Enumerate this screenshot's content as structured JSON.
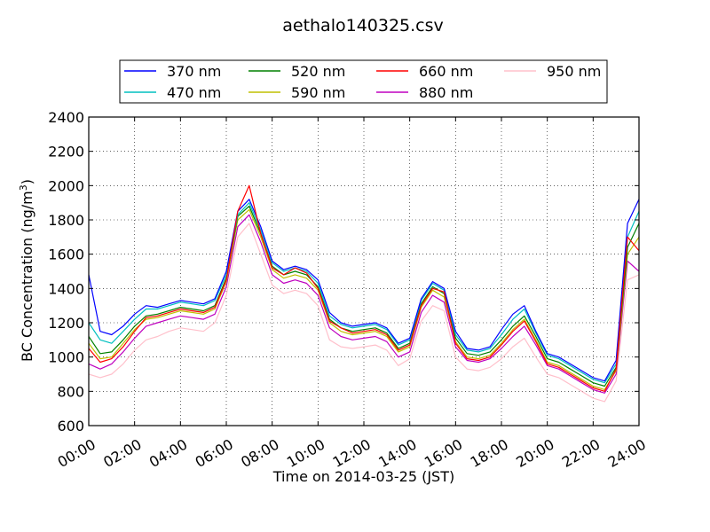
{
  "chart_data": {
    "type": "line",
    "title": "aethalo140325.csv",
    "xlabel": "Time on 2014-03-25 (JST)",
    "ylabel": "BC Concentration (ng/m",
    "ylabel_sup": "3",
    "ylabel_end": ")",
    "xlim_hours": [
      0,
      24
    ],
    "ylim": [
      600,
      2400
    ],
    "x_ticks": [
      "00:00",
      "02:00",
      "04:00",
      "06:00",
      "08:00",
      "10:00",
      "12:00",
      "14:00",
      "16:00",
      "18:00",
      "20:00",
      "22:00",
      "24:00"
    ],
    "y_ticks": [
      600,
      800,
      1000,
      1200,
      1400,
      1600,
      1800,
      2000,
      2200,
      2400
    ],
    "grid": true,
    "legend_placement": "top",
    "series": [
      {
        "name": "370 nm",
        "color": "#0000ff",
        "x_hours": [
          0,
          0.5,
          1,
          1.5,
          2,
          2.5,
          3,
          3.5,
          4,
          4.5,
          5,
          5.5,
          6,
          6.5,
          7,
          7.5,
          8,
          8.5,
          9,
          9.5,
          10,
          10.5,
          11,
          11.5,
          12,
          12.5,
          13,
          13.5,
          14,
          14.5,
          15,
          15.5,
          16,
          16.5,
          17,
          17.5,
          18,
          18.5,
          19,
          19.5,
          20,
          20.5,
          21,
          21.5,
          22,
          22.5,
          23,
          23.5,
          24
        ],
        "values": [
          1480,
          1150,
          1130,
          1180,
          1250,
          1300,
          1290,
          1310,
          1330,
          1320,
          1310,
          1340,
          1500,
          1850,
          1920,
          1760,
          1560,
          1510,
          1530,
          1510,
          1450,
          1260,
          1200,
          1180,
          1190,
          1200,
          1170,
          1080,
          1110,
          1340,
          1440,
          1400,
          1150,
          1050,
          1040,
          1060,
          1160,
          1250,
          1300,
          1150,
          1020,
          1000,
          960,
          920,
          880,
          860,
          980,
          1780,
          1920
        ]
      },
      {
        "name": "470 nm",
        "color": "#00bfbf",
        "x_hours": [
          0,
          0.5,
          1,
          1.5,
          2,
          2.5,
          3,
          3.5,
          4,
          4.5,
          5,
          5.5,
          6,
          6.5,
          7,
          7.5,
          8,
          8.5,
          9,
          9.5,
          10,
          10.5,
          11,
          11.5,
          12,
          12.5,
          13,
          13.5,
          14,
          14.5,
          15,
          15.5,
          16,
          16.5,
          17,
          17.5,
          18,
          18.5,
          19,
          19.5,
          20,
          20.5,
          21,
          21.5,
          22,
          22.5,
          23,
          23.5,
          24
        ],
        "values": [
          1200,
          1100,
          1080,
          1150,
          1220,
          1280,
          1280,
          1300,
          1320,
          1310,
          1300,
          1330,
          1480,
          1830,
          1900,
          1740,
          1550,
          1500,
          1520,
          1500,
          1430,
          1240,
          1190,
          1170,
          1180,
          1190,
          1160,
          1070,
          1100,
          1330,
          1430,
          1390,
          1130,
          1040,
          1030,
          1050,
          1130,
          1220,
          1280,
          1140,
          1010,
          990,
          950,
          910,
          870,
          850,
          960,
          1700,
          1850
        ]
      },
      {
        "name": "520 nm",
        "color": "#008000",
        "x_hours": [
          0,
          0.5,
          1,
          1.5,
          2,
          2.5,
          3,
          3.5,
          4,
          4.5,
          5,
          5.5,
          6,
          6.5,
          7,
          7.5,
          8,
          8.5,
          9,
          9.5,
          10,
          10.5,
          11,
          11.5,
          12,
          12.5,
          13,
          13.5,
          14,
          14.5,
          15,
          15.5,
          16,
          16.5,
          17,
          17.5,
          18,
          18.5,
          19,
          19.5,
          20,
          20.5,
          21,
          21.5,
          22,
          22.5,
          23,
          23.5,
          24
        ],
        "values": [
          1120,
          1020,
          1030,
          1100,
          1180,
          1240,
          1250,
          1270,
          1290,
          1280,
          1270,
          1300,
          1460,
          1820,
          1880,
          1720,
          1530,
          1480,
          1500,
          1480,
          1410,
          1220,
          1170,
          1150,
          1160,
          1170,
          1140,
          1050,
          1080,
          1310,
          1410,
          1370,
          1110,
          1020,
          1010,
          1030,
          1100,
          1180,
          1240,
          1120,
          990,
          970,
          930,
          890,
          850,
          830,
          940,
          1640,
          1780
        ]
      },
      {
        "name": "590 nm",
        "color": "#bfbf00",
        "x_hours": [
          0,
          0.5,
          1,
          1.5,
          2,
          2.5,
          3,
          3.5,
          4,
          4.5,
          5,
          5.5,
          6,
          6.5,
          7,
          7.5,
          8,
          8.5,
          9,
          9.5,
          10,
          10.5,
          11,
          11.5,
          12,
          12.5,
          13,
          13.5,
          14,
          14.5,
          15,
          15.5,
          16,
          16.5,
          17,
          17.5,
          18,
          18.5,
          19,
          19.5,
          20,
          20.5,
          21,
          21.5,
          22,
          22.5,
          23,
          23.5,
          24
        ],
        "values": [
          1080,
          990,
          1000,
          1080,
          1160,
          1220,
          1230,
          1250,
          1270,
          1260,
          1250,
          1280,
          1440,
          1800,
          1860,
          1700,
          1510,
          1460,
          1480,
          1460,
          1390,
          1200,
          1150,
          1130,
          1140,
          1150,
          1120,
          1030,
          1060,
          1290,
          1390,
          1350,
          1090,
          1000,
          990,
          1010,
          1080,
          1160,
          1220,
          1100,
          970,
          950,
          910,
          870,
          830,
          810,
          920,
          1600,
          1700
        ]
      },
      {
        "name": "660 nm",
        "color": "#ff0000",
        "x_hours": [
          0,
          0.5,
          1,
          1.5,
          2,
          2.5,
          3,
          3.5,
          4,
          4.5,
          5,
          5.5,
          6,
          6.5,
          7,
          7.5,
          8,
          8.5,
          9,
          9.5,
          10,
          10.5,
          11,
          11.5,
          12,
          12.5,
          13,
          13.5,
          14,
          14.5,
          15,
          15.5,
          16,
          16.5,
          17,
          17.5,
          18,
          18.5,
          19,
          19.5,
          20,
          20.5,
          21,
          21.5,
          22,
          22.5,
          23,
          23.5,
          24
        ],
        "values": [
          1050,
          970,
          990,
          1060,
          1150,
          1230,
          1240,
          1260,
          1280,
          1270,
          1260,
          1290,
          1450,
          1850,
          2000,
          1720,
          1520,
          1480,
          1520,
          1490,
          1400,
          1210,
          1170,
          1140,
          1150,
          1160,
          1130,
          1040,
          1070,
          1300,
          1400,
          1380,
          1080,
          990,
          980,
          1000,
          1070,
          1150,
          1210,
          1090,
          960,
          940,
          900,
          860,
          820,
          800,
          930,
          1700,
          1620
        ]
      },
      {
        "name": "880 nm",
        "color": "#bf00bf",
        "x_hours": [
          0,
          0.5,
          1,
          1.5,
          2,
          2.5,
          3,
          3.5,
          4,
          4.5,
          5,
          5.5,
          6,
          6.5,
          7,
          7.5,
          8,
          8.5,
          9,
          9.5,
          10,
          10.5,
          11,
          11.5,
          12,
          12.5,
          13,
          13.5,
          14,
          14.5,
          15,
          15.5,
          16,
          16.5,
          17,
          17.5,
          18,
          18.5,
          19,
          19.5,
          20,
          20.5,
          21,
          21.5,
          22,
          22.5,
          23,
          23.5,
          24
        ],
        "values": [
          960,
          930,
          960,
          1030,
          1110,
          1180,
          1200,
          1220,
          1240,
          1230,
          1220,
          1250,
          1410,
          1760,
          1830,
          1670,
          1480,
          1430,
          1450,
          1430,
          1360,
          1170,
          1120,
          1100,
          1110,
          1120,
          1090,
          1000,
          1030,
          1260,
          1360,
          1320,
          1060,
          980,
          970,
          990,
          1050,
          1120,
          1180,
          1070,
          950,
          930,
          890,
          850,
          810,
          790,
          900,
          1560,
          1500
        ]
      },
      {
        "name": "950 nm",
        "color": "#ffc0cb",
        "x_hours": [
          0,
          0.5,
          1,
          1.5,
          2,
          2.5,
          3,
          3.5,
          4,
          4.5,
          5,
          5.5,
          6,
          6.5,
          7,
          7.5,
          8,
          8.5,
          9,
          9.5,
          10,
          10.5,
          11,
          11.5,
          12,
          12.5,
          13,
          13.5,
          14,
          14.5,
          15,
          15.5,
          16,
          16.5,
          17,
          17.5,
          18,
          18.5,
          19,
          19.5,
          20,
          20.5,
          21,
          21.5,
          22,
          22.5,
          23,
          23.5,
          24
        ],
        "values": [
          900,
          880,
          900,
          960,
          1040,
          1100,
          1120,
          1150,
          1170,
          1160,
          1150,
          1200,
          1360,
          1700,
          1780,
          1600,
          1420,
          1370,
          1390,
          1370,
          1300,
          1100,
          1060,
          1050,
          1060,
          1070,
          1040,
          950,
          990,
          1210,
          1300,
          1270,
          1000,
          930,
          920,
          940,
          990,
          1060,
          1110,
          1000,
          900,
          880,
          840,
          800,
          760,
          740,
          860,
          1450,
          1480
        ]
      }
    ]
  }
}
